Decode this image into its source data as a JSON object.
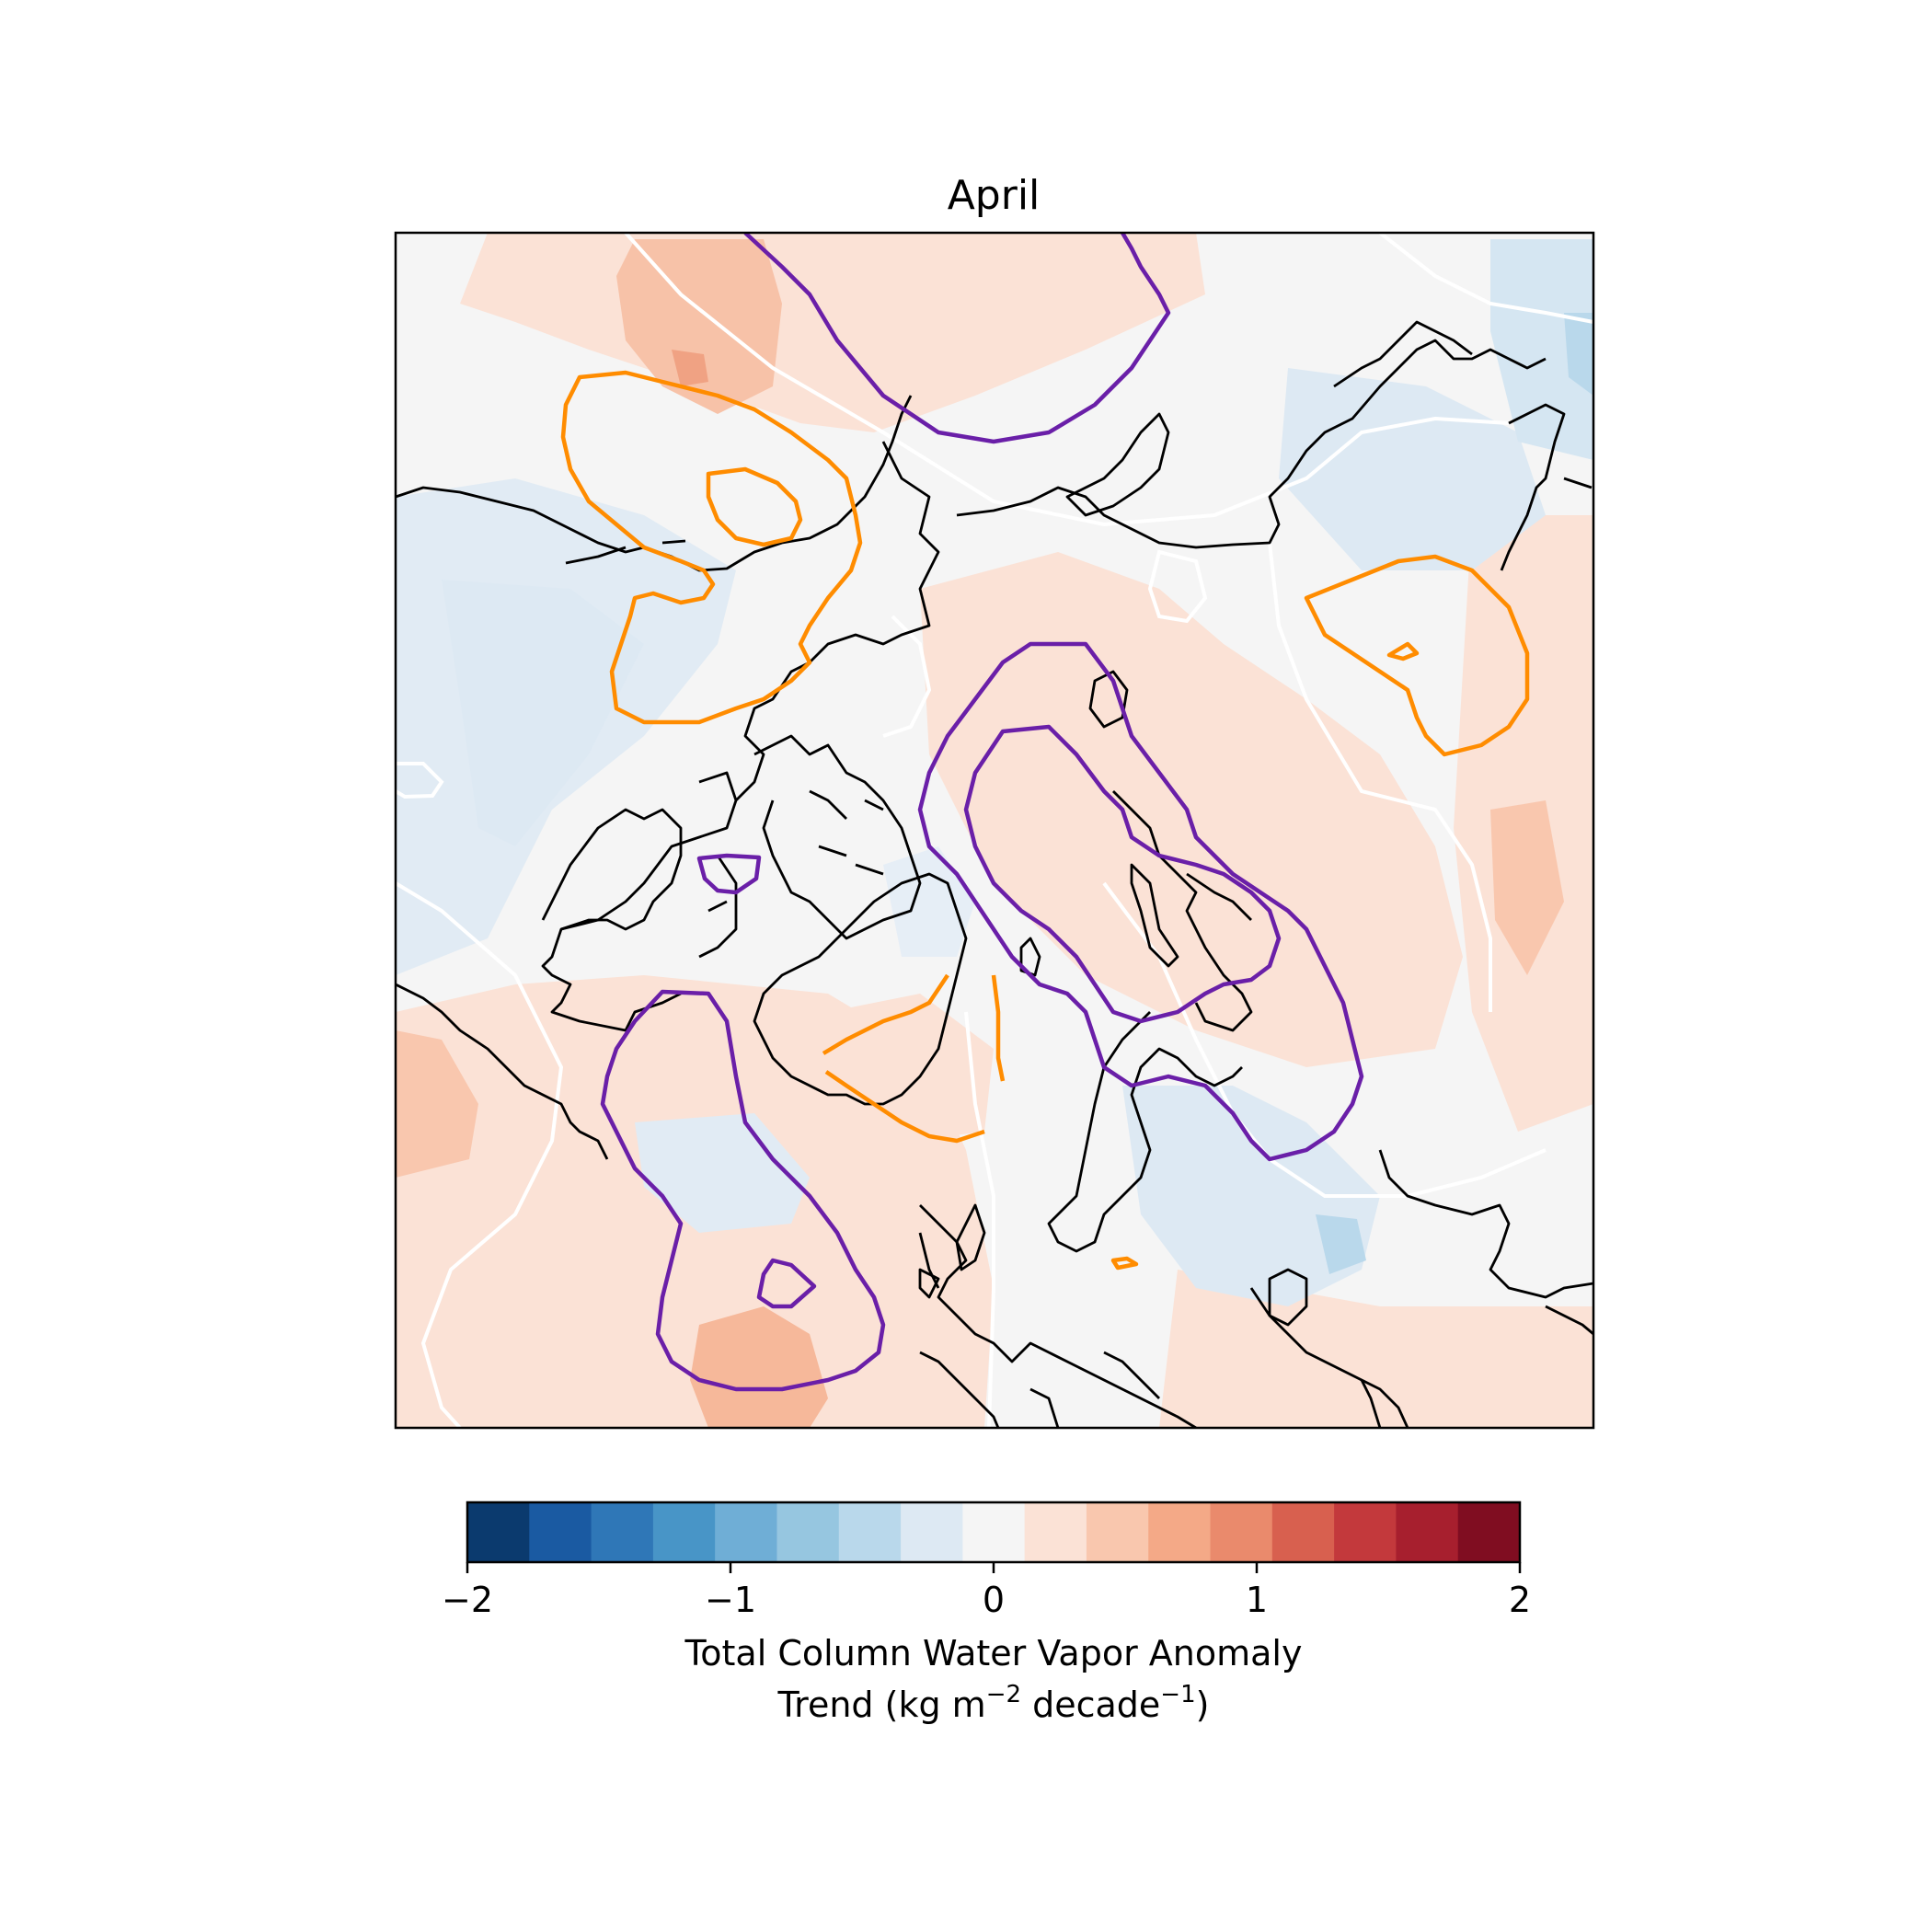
{
  "title": "April",
  "colorbar": {
    "ticks": [
      "−2",
      "−1",
      "0",
      "1",
      "2"
    ],
    "tick_values": [
      -2,
      -1,
      0,
      1,
      2
    ],
    "range": [
      -2,
      2
    ],
    "label_line1": "Total Column Water Vapor Anomaly",
    "label_line2_pre": "Trend (kg m",
    "label_line2_exp1": "−2",
    "label_line2_mid": " decade",
    "label_line2_exp2": "−1",
    "label_line2_post": ")",
    "colors": [
      "#0b3a6e",
      "#1a5aa2",
      "#2f77b7",
      "#4895c7",
      "#6faed6",
      "#96c6e0",
      "#b9d8eb",
      "#dde9f3",
      "#f5f5f5",
      "#fbe2d6",
      "#f9c7ae",
      "#f4a987",
      "#ea8a6c",
      "#d8604f",
      "#c3393c",
      "#a71f2e",
      "#800d21"
    ]
  },
  "contour_colors": {
    "purple": "#6a1fa8",
    "orange": "#ff8c00",
    "white": "#ffffff",
    "coast": "#000000"
  }
}
